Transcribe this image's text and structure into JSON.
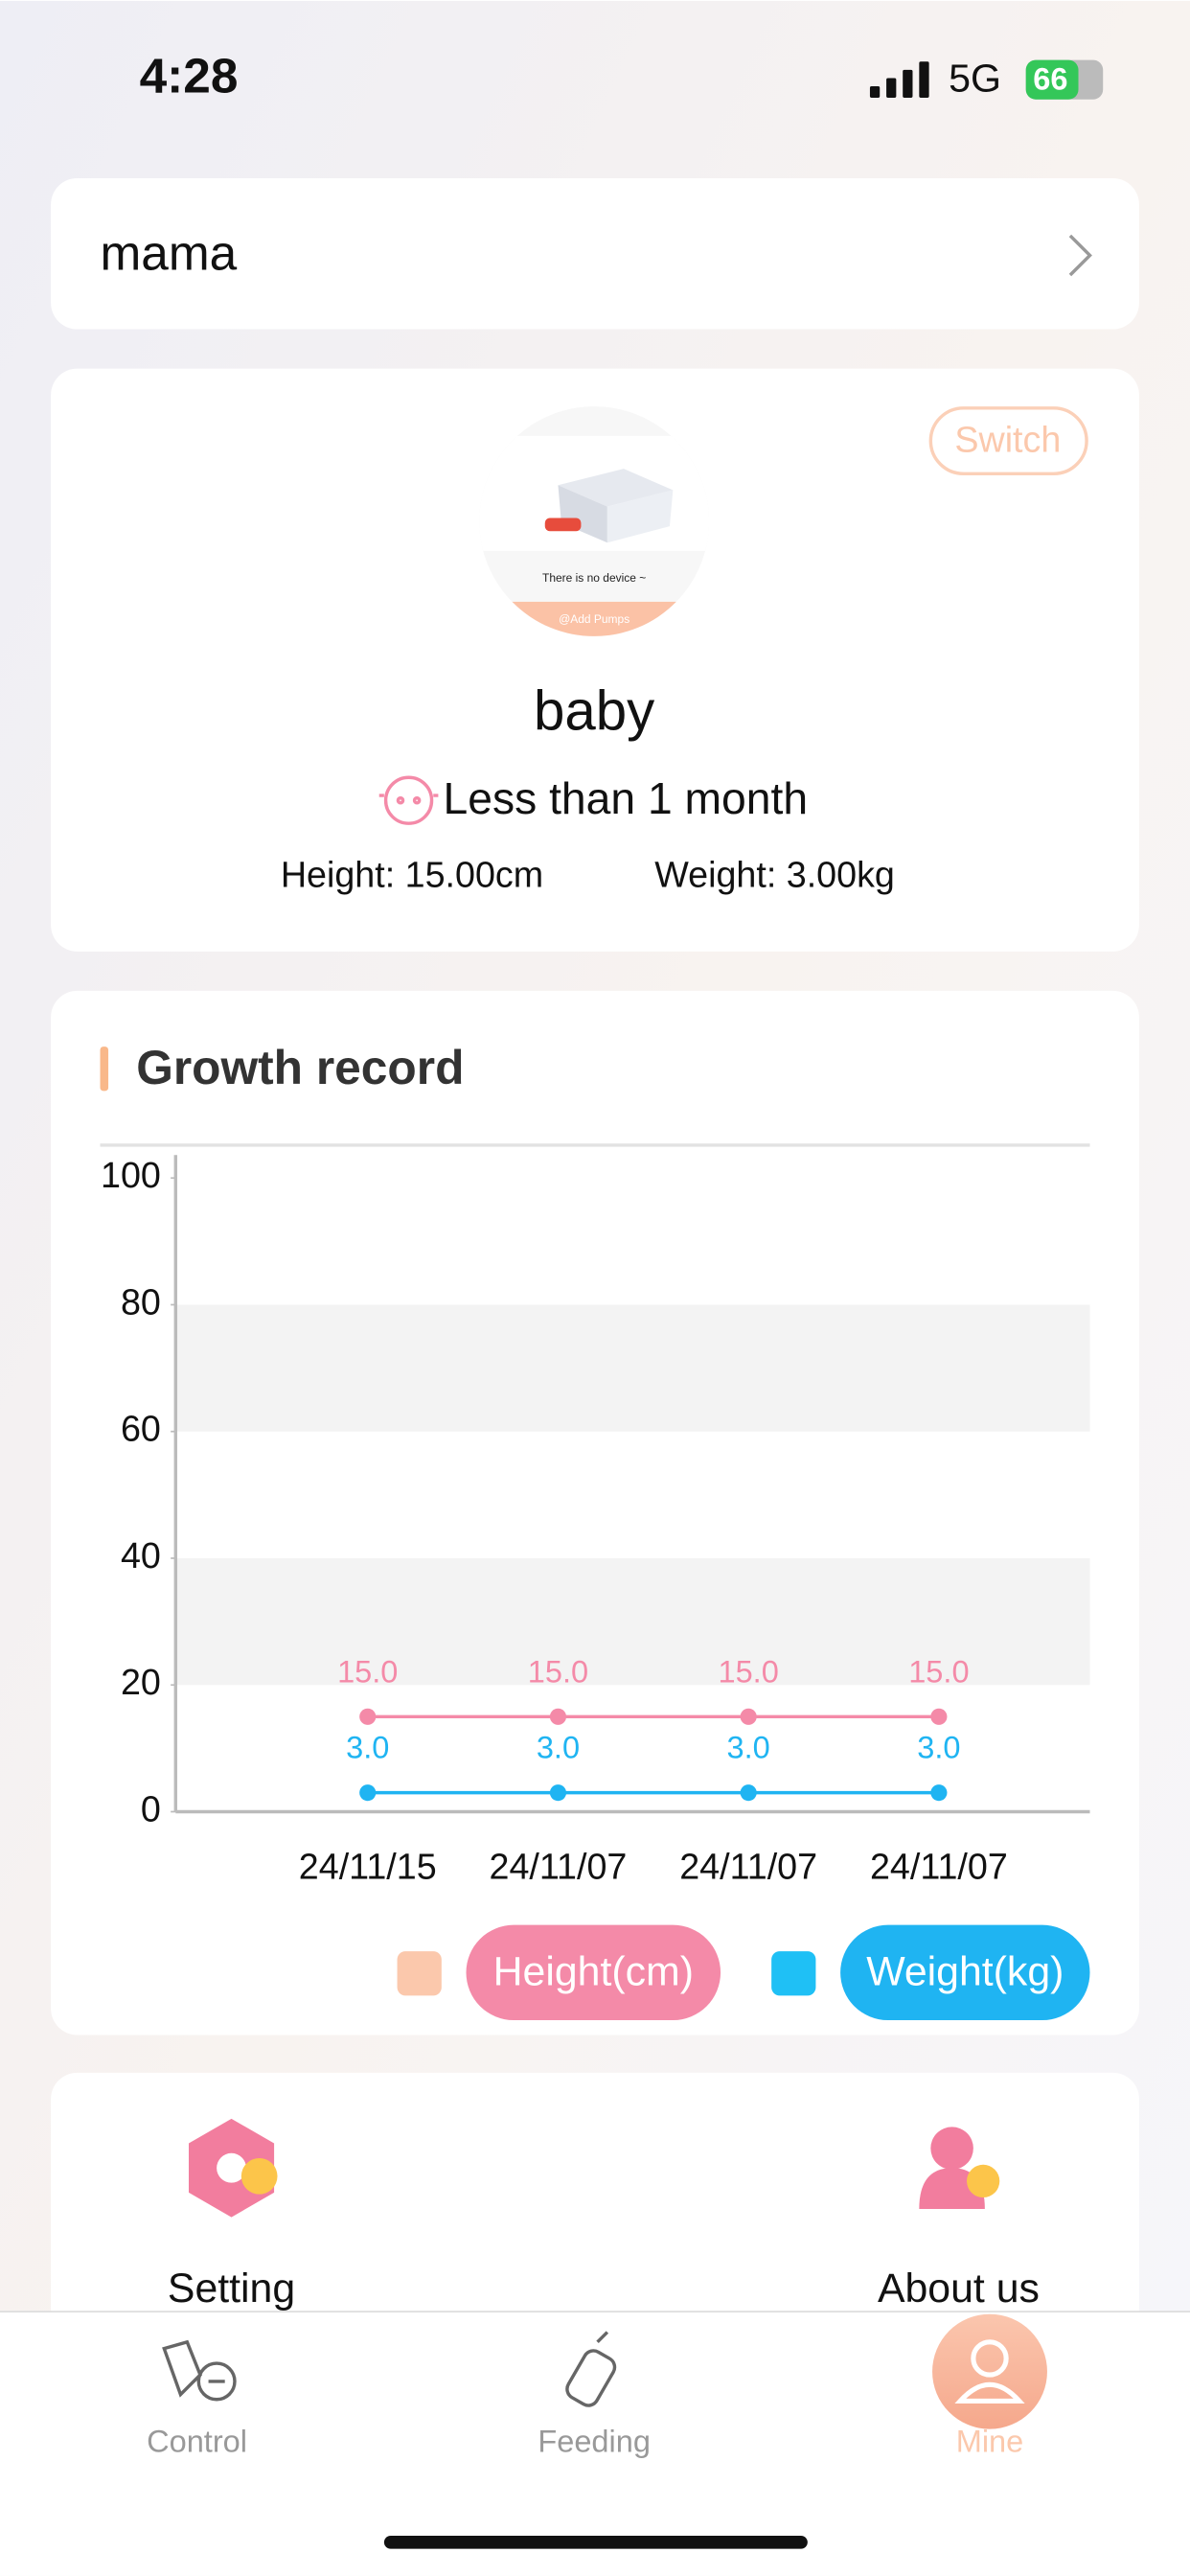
{
  "status_bar": {
    "time": "4:28",
    "network": "5G",
    "battery": 66
  },
  "header": {
    "title": "mama"
  },
  "baby_card": {
    "device_image": {
      "message": "There is no device ~",
      "button": "@Add Pumps"
    },
    "switch": "Switch",
    "name": "baby",
    "age": "Less than 1 month",
    "height": "Height: 15.00cm",
    "weight": "Weight: 3.00kg"
  },
  "chart_data": {
    "type": "line",
    "title": "Growth record",
    "categories": [
      "24/11/15",
      "24/11/07",
      "24/11/07",
      "24/11/07"
    ],
    "series": [
      {
        "name": "Height(cm)",
        "color": "#f48aa8",
        "swatch_color": "#fbc8ac",
        "values": [
          15,
          15,
          15,
          15
        ],
        "value_labels": [
          "15.0",
          "15.0",
          "15.0",
          "15.0"
        ]
      },
      {
        "name": "Weight(kg)",
        "color": "#1fb4f2",
        "swatch_color": "#1fc0f5",
        "values": [
          3,
          3,
          3,
          3
        ],
        "value_labels": [
          "3.0",
          "3.0",
          "3.0",
          "3.0"
        ]
      }
    ],
    "ylim": [
      0,
      100
    ],
    "yticks": [
      0,
      20,
      40,
      60,
      80,
      100
    ],
    "grid": true
  },
  "menu": {
    "items": [
      "Setting",
      "About us"
    ]
  },
  "tab_bar": {
    "items": [
      "Control",
      "Feeding",
      "Mine"
    ],
    "active": "Mine"
  }
}
